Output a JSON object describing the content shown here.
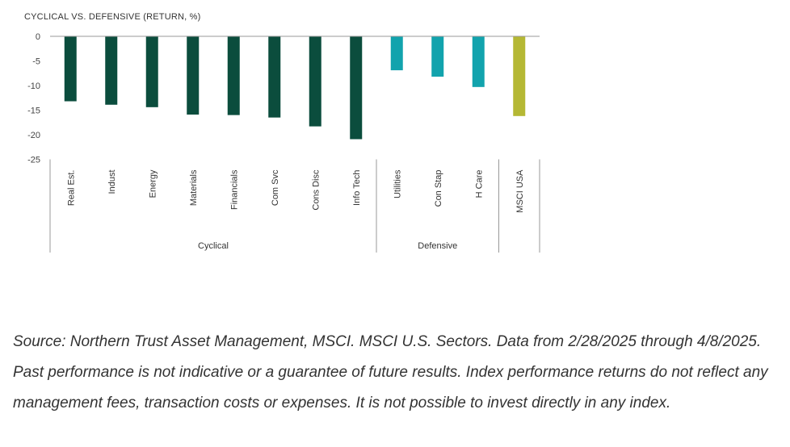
{
  "chart_data": {
    "type": "bar",
    "title": "CYCLICAL VS. DEFENSIVE (RETURN, %)",
    "categories": [
      "Real Est.",
      "Indust",
      "Energy",
      "Materials",
      "Financials",
      "Com Svc",
      "Cons Disc",
      "Info Tech",
      "Utilities",
      "Con Stap",
      "H Care",
      "MSCI USA"
    ],
    "values": [
      -13.2,
      -13.9,
      -14.4,
      -15.9,
      -16.0,
      -16.5,
      -18.3,
      -20.9,
      -6.9,
      -8.2,
      -10.3,
      -16.2
    ],
    "groups": [
      {
        "label": "Cyclical",
        "categories": [
          "Real Est.",
          "Indust",
          "Energy",
          "Materials",
          "Financials",
          "Com Svc",
          "Cons Disc",
          "Info Tech"
        ],
        "color": "#0b4d3d"
      },
      {
        "label": "Defensive",
        "categories": [
          "Utilities",
          "Con Stap",
          "H Care"
        ],
        "color": "#12a3ad"
      },
      {
        "label": "",
        "categories": [
          "MSCI USA"
        ],
        "color": "#b5b834"
      }
    ],
    "yticks": [
      0,
      -5,
      -10,
      -15,
      -20,
      -25
    ],
    "ylim": [
      -25,
      0
    ],
    "xlabel": "",
    "ylabel": "",
    "grid": false
  },
  "source_note": "Source: Northern Trust Asset Management, MSCI. MSCI U.S. Sectors. Data from 2/28/2025 through 4/8/2025. Past performance is not indicative or a guarantee of future results. Index performance returns do not reflect any management fees, transaction costs or expenses. It is not possible to invest directly in any index."
}
